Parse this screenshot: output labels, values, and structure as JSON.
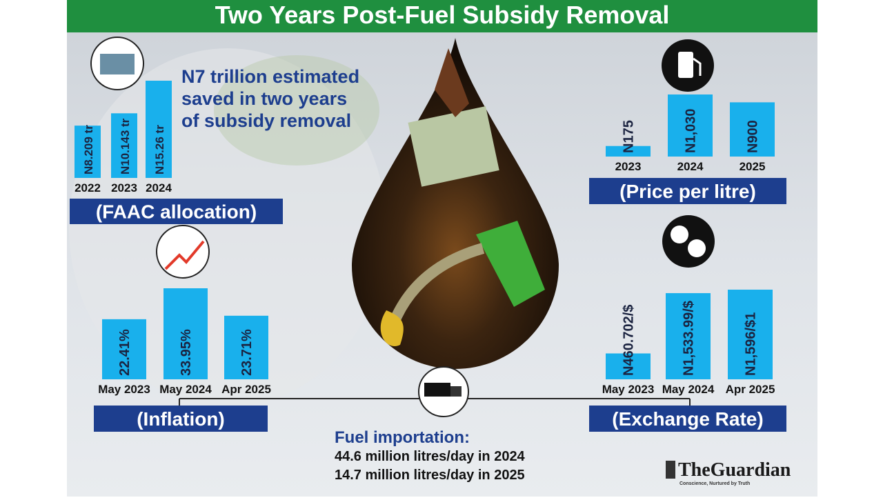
{
  "title": "Two Years Post-Fuel Subsidy Removal",
  "headline": [
    "N7 trillion estimated",
    "saved in two years",
    "of subsidy removal"
  ],
  "fuel_importation": {
    "heading": "Fuel importation:",
    "lines": [
      "44.6 million litres/day in 2024",
      "14.7 million litres/day in 2025"
    ]
  },
  "logo": {
    "name": "TheGuardian",
    "tagline": "Conscience, Nurtured by Truth"
  },
  "chart_data": [
    {
      "type": "bar",
      "title": "(FAAC allocation)",
      "categories": [
        "2022",
        "2023",
        "2024"
      ],
      "values": [
        8.209,
        10.143,
        15.26
      ],
      "value_labels": [
        "N8.209 tr",
        "N10.143 tr",
        "N15.26 tr"
      ],
      "color": "#19b0ec"
    },
    {
      "type": "bar",
      "title": "(Price per litre)",
      "categories": [
        "2023",
        "2024",
        "2025"
      ],
      "values": [
        175,
        1030,
        900
      ],
      "value_labels": [
        "N175",
        "N1,030",
        "N900"
      ],
      "color": "#19b0ec"
    },
    {
      "type": "bar",
      "title": "(Inflation)",
      "categories": [
        "May 2023",
        "May 2024",
        "Apr 2025"
      ],
      "values": [
        22.41,
        33.95,
        23.71
      ],
      "value_labels": [
        "22.41%",
        "33.95%",
        "23.71%"
      ],
      "color": "#19b0ec"
    },
    {
      "type": "bar",
      "title": "(Exchange Rate)",
      "categories": [
        "May 2023",
        "May 2024",
        "Apr 2025"
      ],
      "values": [
        460.702,
        1533.99,
        1596
      ],
      "value_labels": [
        "N460.702/$",
        "N1,533.99/$",
        "N1,596/$1"
      ],
      "color": "#19b0ec"
    }
  ]
}
